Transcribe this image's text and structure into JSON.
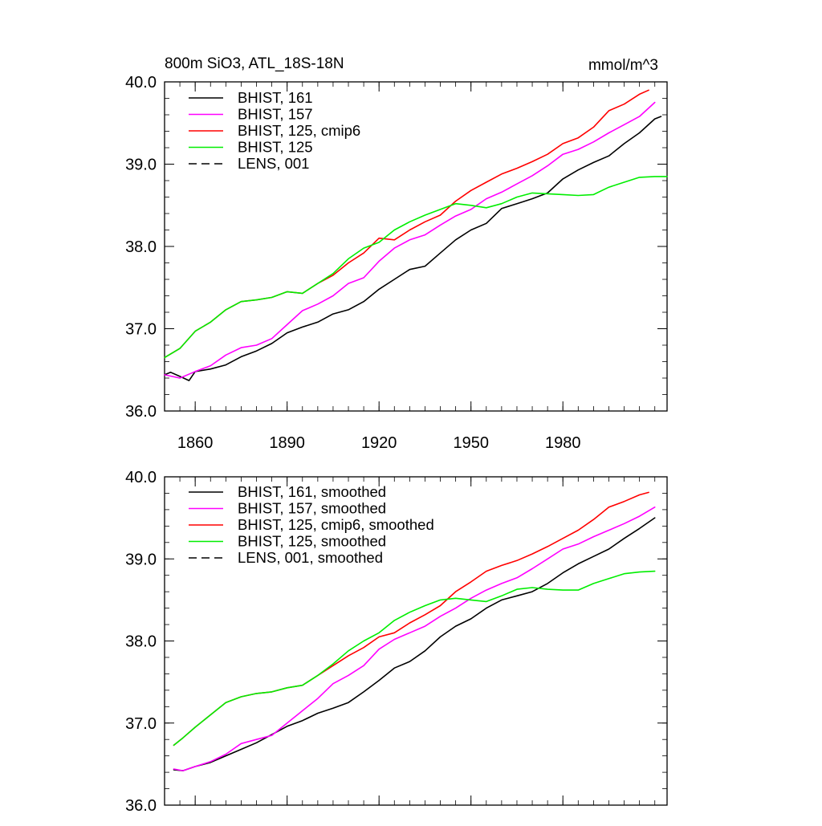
{
  "chart_data": [
    {
      "type": "line",
      "title": "800m SiO3, ATL_18S-18N",
      "units_label": "mmol/m^3",
      "xlabel": "",
      "ylabel": "",
      "xlim": [
        1850,
        2014
      ],
      "ylim": [
        36.0,
        40.0
      ],
      "x_ticks": [
        1860,
        1890,
        1920,
        1950,
        1980
      ],
      "x_tick_labels": [
        "1860",
        "1890",
        "1920",
        "1950",
        "1980"
      ],
      "y_ticks": [
        36.0,
        37.0,
        38.0,
        39.0,
        40.0
      ],
      "y_tick_labels": [
        "36.0",
        "37.0",
        "38.0",
        "39.0",
        "40.0"
      ],
      "grid": false,
      "legend_position": "top-left",
      "legend": [
        "BHIST, 161",
        "BHIST, 157",
        "BHIST, 125, cmip6",
        "BHIST, 125",
        "LENS, 001"
      ],
      "series": [
        {
          "name": "BHIST, 161",
          "color": "#000000",
          "dash": "solid",
          "x": [
            1850,
            1852,
            1855,
            1858,
            1860,
            1865,
            1870,
            1875,
            1880,
            1885,
            1890,
            1895,
            1900,
            1905,
            1910,
            1915,
            1920,
            1925,
            1930,
            1935,
            1940,
            1945,
            1950,
            1955,
            1960,
            1965,
            1970,
            1975,
            1980,
            1985,
            1990,
            1995,
            2000,
            2005,
            2010,
            2012
          ],
          "y": [
            36.44,
            36.47,
            36.42,
            36.37,
            36.48,
            36.51,
            36.56,
            36.66,
            36.73,
            36.82,
            36.95,
            37.02,
            37.08,
            37.18,
            37.23,
            37.33,
            37.48,
            37.6,
            37.72,
            37.76,
            37.92,
            38.08,
            38.2,
            38.28,
            38.46,
            38.52,
            38.58,
            38.65,
            38.82,
            38.93,
            39.02,
            39.1,
            39.25,
            39.38,
            39.55,
            39.58
          ]
        },
        {
          "name": "BHIST, 157",
          "color": "#ff00ff",
          "dash": "solid",
          "x": [
            1850,
            1855,
            1860,
            1865,
            1870,
            1875,
            1880,
            1885,
            1890,
            1895,
            1900,
            1905,
            1910,
            1915,
            1920,
            1925,
            1930,
            1935,
            1940,
            1945,
            1950,
            1955,
            1960,
            1965,
            1970,
            1975,
            1980,
            1985,
            1990,
            1995,
            2000,
            2005,
            2010
          ],
          "y": [
            36.44,
            36.4,
            36.48,
            36.55,
            36.68,
            36.77,
            36.8,
            36.88,
            37.05,
            37.22,
            37.3,
            37.4,
            37.55,
            37.62,
            37.82,
            37.98,
            38.08,
            38.14,
            38.26,
            38.37,
            38.45,
            38.58,
            38.66,
            38.76,
            38.86,
            38.98,
            39.12,
            39.18,
            39.27,
            39.38,
            39.48,
            39.58,
            39.75
          ]
        },
        {
          "name": "BHIST, 125, cmip6",
          "color": "#ff0000",
          "dash": "solid",
          "x": [
            1850,
            1855,
            1860,
            1865,
            1870,
            1875,
            1880,
            1885,
            1890,
            1895,
            1900,
            1905,
            1910,
            1915,
            1920,
            1925,
            1930,
            1935,
            1940,
            1945,
            1950,
            1955,
            1960,
            1965,
            1970,
            1975,
            1980,
            1985,
            1990,
            1995,
            2000,
            2005,
            2008
          ],
          "y": [
            36.65,
            36.76,
            36.97,
            37.08,
            37.23,
            37.33,
            37.35,
            37.38,
            37.45,
            37.43,
            37.55,
            37.65,
            37.8,
            37.92,
            38.1,
            38.08,
            38.2,
            38.3,
            38.38,
            38.55,
            38.68,
            38.78,
            38.88,
            38.95,
            39.03,
            39.12,
            39.25,
            39.32,
            39.45,
            39.65,
            39.73,
            39.85,
            39.9
          ]
        },
        {
          "name": "BHIST, 125",
          "color": "#00ee00",
          "dash": "solid",
          "x": [
            1850,
            1855,
            1860,
            1865,
            1870,
            1875,
            1880,
            1885,
            1890,
            1895,
            1900,
            1905,
            1910,
            1915,
            1920,
            1925,
            1930,
            1935,
            1940,
            1945,
            1950,
            1955,
            1960,
            1965,
            1970,
            1975,
            1980,
            1985,
            1990,
            1995,
            2000,
            2005,
            2010,
            2014
          ],
          "y": [
            36.65,
            36.76,
            36.97,
            37.08,
            37.23,
            37.33,
            37.35,
            37.38,
            37.45,
            37.43,
            37.55,
            37.67,
            37.85,
            37.98,
            38.05,
            38.2,
            38.3,
            38.38,
            38.45,
            38.52,
            38.5,
            38.47,
            38.52,
            38.6,
            38.65,
            38.64,
            38.63,
            38.62,
            38.63,
            38.72,
            38.78,
            38.84,
            38.85,
            38.85
          ]
        },
        {
          "name": "LENS, 001",
          "color": "#000000",
          "dash": "dashed",
          "x": [],
          "y": []
        }
      ]
    },
    {
      "type": "line",
      "title": "",
      "xlabel": "",
      "ylabel": "",
      "xlim": [
        1850,
        2014
      ],
      "ylim": [
        36.0,
        40.0
      ],
      "x_ticks": [
        1860,
        1890,
        1920,
        1950,
        1980
      ],
      "x_tick_labels": [],
      "y_ticks": [
        36.0,
        37.0,
        38.0,
        39.0,
        40.0
      ],
      "y_tick_labels": [
        "36.0",
        "37.0",
        "38.0",
        "39.0",
        "40.0"
      ],
      "grid": false,
      "legend_position": "top-left",
      "legend": [
        "BHIST, 161, smoothed",
        "BHIST, 157, smoothed",
        "BHIST, 125, cmip6, smoothed",
        "BHIST, 125, smoothed",
        "LENS, 001, smoothed"
      ],
      "series": [
        {
          "name": "BHIST, 161, smoothed",
          "color": "#000000",
          "dash": "solid",
          "x": [
            1853,
            1856,
            1860,
            1865,
            1870,
            1875,
            1880,
            1885,
            1890,
            1895,
            1900,
            1905,
            1910,
            1915,
            1920,
            1925,
            1930,
            1935,
            1940,
            1945,
            1950,
            1955,
            1960,
            1965,
            1970,
            1975,
            1980,
            1985,
            1990,
            1995,
            2000,
            2005,
            2010
          ],
          "y": [
            36.43,
            36.42,
            36.47,
            36.52,
            36.6,
            36.68,
            36.76,
            36.86,
            36.96,
            37.03,
            37.12,
            37.18,
            37.25,
            37.38,
            37.52,
            37.67,
            37.75,
            37.88,
            38.05,
            38.18,
            38.27,
            38.4,
            38.5,
            38.55,
            38.6,
            38.7,
            38.83,
            38.94,
            39.03,
            39.12,
            39.25,
            39.37,
            39.5
          ]
        },
        {
          "name": "BHIST, 157, smoothed",
          "color": "#ff00ff",
          "dash": "solid",
          "x": [
            1853,
            1856,
            1860,
            1865,
            1870,
            1875,
            1880,
            1885,
            1890,
            1895,
            1900,
            1905,
            1910,
            1915,
            1920,
            1925,
            1930,
            1935,
            1940,
            1945,
            1950,
            1955,
            1960,
            1965,
            1970,
            1975,
            1980,
            1985,
            1990,
            1995,
            2000,
            2005,
            2010
          ],
          "y": [
            36.44,
            36.42,
            36.47,
            36.53,
            36.62,
            36.75,
            36.8,
            36.85,
            37.0,
            37.15,
            37.3,
            37.48,
            37.58,
            37.7,
            37.9,
            38.02,
            38.1,
            38.18,
            38.3,
            38.4,
            38.52,
            38.62,
            38.7,
            38.77,
            38.88,
            39.0,
            39.12,
            39.18,
            39.27,
            39.35,
            39.43,
            39.52,
            39.63
          ]
        },
        {
          "name": "BHIST, 125, cmip6, smoothed",
          "color": "#ff0000",
          "dash": "solid",
          "x": [
            1853,
            1856,
            1860,
            1865,
            1870,
            1875,
            1880,
            1885,
            1890,
            1895,
            1900,
            1905,
            1910,
            1915,
            1920,
            1925,
            1930,
            1935,
            1940,
            1945,
            1950,
            1955,
            1960,
            1965,
            1970,
            1975,
            1980,
            1985,
            1990,
            1995,
            2000,
            2005,
            2008
          ],
          "y": [
            36.73,
            36.82,
            36.95,
            37.1,
            37.25,
            37.32,
            37.36,
            37.38,
            37.43,
            37.46,
            37.58,
            37.7,
            37.82,
            37.92,
            38.05,
            38.1,
            38.22,
            38.32,
            38.43,
            38.6,
            38.72,
            38.85,
            38.92,
            38.98,
            39.06,
            39.15,
            39.25,
            39.35,
            39.48,
            39.63,
            39.7,
            39.78,
            39.81
          ]
        },
        {
          "name": "BHIST, 125, smoothed",
          "color": "#00ee00",
          "dash": "solid",
          "x": [
            1853,
            1856,
            1860,
            1865,
            1870,
            1875,
            1880,
            1885,
            1890,
            1895,
            1900,
            1905,
            1910,
            1915,
            1920,
            1925,
            1930,
            1935,
            1940,
            1945,
            1950,
            1955,
            1960,
            1965,
            1970,
            1975,
            1980,
            1985,
            1990,
            1995,
            2000,
            2005,
            2010
          ],
          "y": [
            36.73,
            36.82,
            36.95,
            37.1,
            37.25,
            37.32,
            37.36,
            37.38,
            37.43,
            37.46,
            37.58,
            37.72,
            37.88,
            38.0,
            38.1,
            38.25,
            38.35,
            38.43,
            38.5,
            38.52,
            38.5,
            38.48,
            38.55,
            38.63,
            38.65,
            38.63,
            38.62,
            38.62,
            38.7,
            38.76,
            38.82,
            38.84,
            38.85
          ]
        },
        {
          "name": "LENS, 001, smoothed",
          "color": "#000000",
          "dash": "dashed",
          "x": [],
          "y": []
        }
      ]
    }
  ]
}
